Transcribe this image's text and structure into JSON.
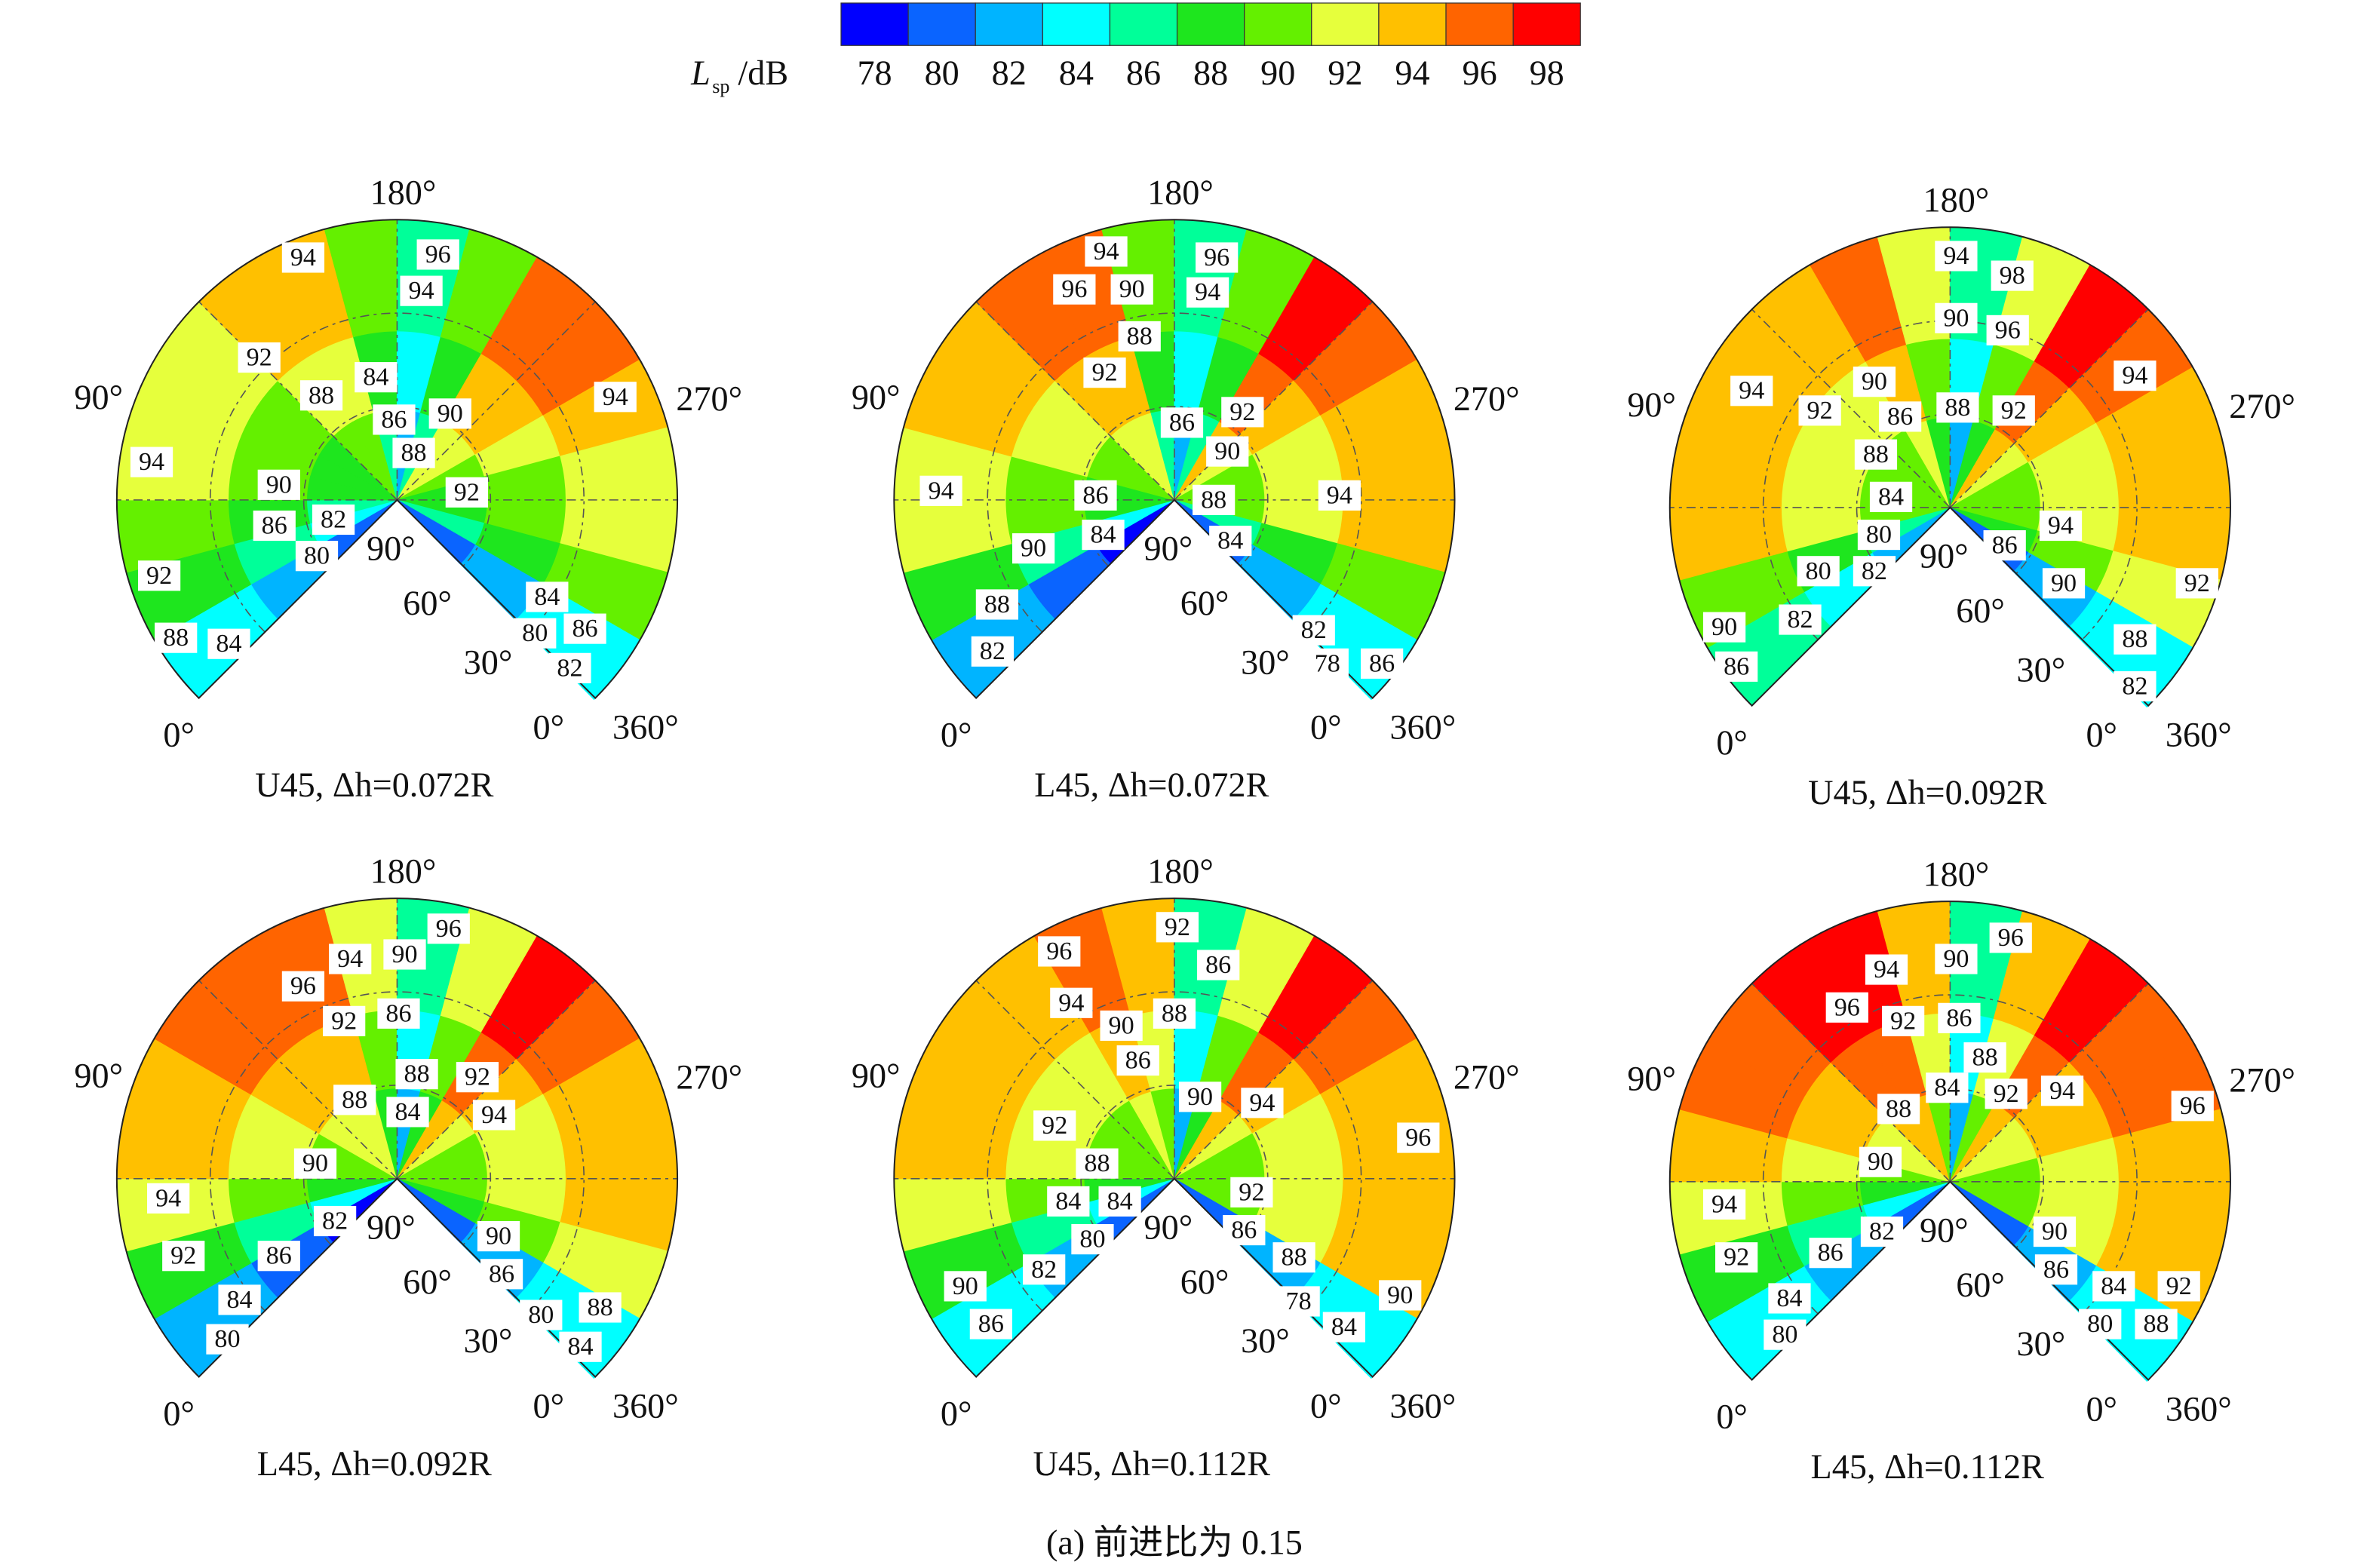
{
  "colorbar": {
    "label": {
      "symbol": "L",
      "subscript": "sp",
      "unit": "/dB"
    },
    "ticks": [
      78,
      80,
      82,
      84,
      86,
      88,
      90,
      92,
      94,
      96,
      98
    ],
    "colors": [
      "#0000ff",
      "#0a64ff",
      "#00b4ff",
      "#00ffff",
      "#00ff99",
      "#1ee61e",
      "#64f000",
      "#e6ff3c",
      "#ffc000",
      "#ff6400",
      "#ff0000"
    ]
  },
  "angle_labels": {
    "top": "180°",
    "left": "90°",
    "right": "270°",
    "start": "0°",
    "end": "360°",
    "radial": [
      "90°",
      "60°",
      "30°",
      "0°"
    ]
  },
  "panels": [
    {
      "title": "U45, Δh=0.072R",
      "contour_labels": [
        94,
        96,
        94,
        92,
        84,
        88,
        86,
        90,
        94,
        88,
        94,
        90,
        92,
        82,
        86,
        80,
        92,
        84,
        88,
        84,
        80,
        86,
        82
      ]
    },
    {
      "title": "L45, Δh=0.072R",
      "contour_labels": [
        94,
        96,
        96,
        90,
        94,
        88,
        92,
        86,
        92,
        90,
        94,
        86,
        88,
        94,
        84,
        84,
        90,
        88,
        82,
        82,
        78,
        86
      ]
    },
    {
      "title": "U45, Δh=0.092R",
      "contour_labels": [
        94,
        98,
        90,
        96,
        94,
        90,
        94,
        92,
        86,
        88,
        92,
        88,
        84,
        94,
        80,
        86,
        80,
        82,
        90,
        92,
        82,
        90,
        88,
        86,
        82
      ]
    },
    {
      "title": "L45, Δh=0.092R",
      "contour_labels": [
        96,
        94,
        90,
        96,
        92,
        86,
        88,
        92,
        94,
        88,
        84,
        90,
        94,
        82,
        90,
        92,
        86,
        86,
        84,
        80,
        88,
        80,
        84
      ]
    },
    {
      "title": "U45, Δh=0.112R",
      "contour_labels": [
        92,
        96,
        86,
        94,
        90,
        88,
        86,
        90,
        94,
        96,
        92,
        88,
        92,
        84,
        84,
        86,
        80,
        88,
        82,
        90,
        90,
        78,
        86,
        84
      ]
    },
    {
      "title": "L45, Δh=0.112R",
      "contour_labels": [
        96,
        94,
        90,
        96,
        92,
        86,
        88,
        84,
        92,
        94,
        96,
        88,
        90,
        94,
        82,
        90,
        92,
        86,
        86,
        84,
        84,
        92,
        80,
        88,
        80
      ]
    }
  ],
  "caption": "(a) 前进比为 0.15"
}
